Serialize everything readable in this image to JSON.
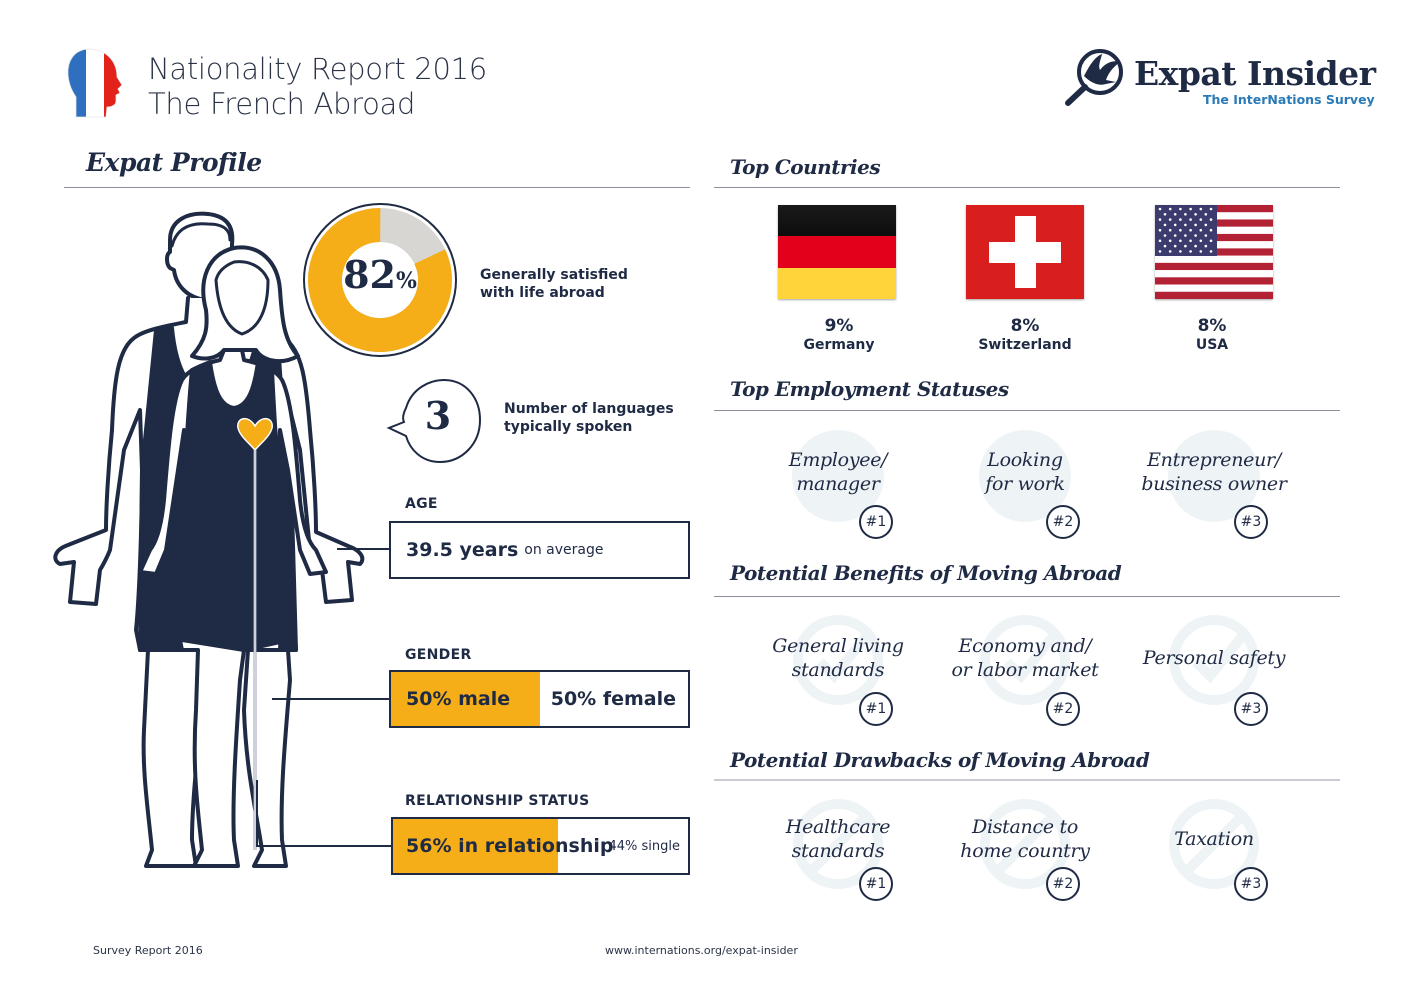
{
  "header": {
    "title_line1": "Nationality Report 2016",
    "title_line2": "The French Abroad",
    "logo_name": "Expat Insider",
    "logo_tagline": "The InterNations Survey",
    "flag_colors": [
      "#2f6fbf",
      "#ffffff",
      "#e2231a"
    ]
  },
  "profile": {
    "section_title": "Expat Profile",
    "satisfaction": {
      "value": 82,
      "number": "82",
      "unit": "%",
      "text_line1": "Generally satisfied",
      "text_line2": "with life abroad"
    },
    "languages": {
      "number": "3",
      "text_line1": "Number of languages",
      "text_line2": "typically spoken"
    },
    "age": {
      "label": "AGE",
      "value": "39.5 years",
      "suffix": "on average"
    },
    "gender": {
      "label": "GENDER",
      "male_pct": 50,
      "male_text": "50% male",
      "female_text": "50% female"
    },
    "relationship": {
      "label": "RELATIONSHIP STATUS",
      "relationship_pct": 56,
      "relationship_text": "56% in relationship",
      "single_text": "44% single"
    }
  },
  "top_countries": {
    "section_title": "Top Countries",
    "items": [
      {
        "pct": "9%",
        "name": "Germany",
        "flag": "germany-flag"
      },
      {
        "pct": "8%",
        "name": "Switzerland",
        "flag": "switzerland-flag"
      },
      {
        "pct": "8%",
        "name": "USA",
        "flag": "usa-flag"
      }
    ]
  },
  "employment": {
    "section_title": "Top Employment Statuses",
    "items": [
      {
        "line1": "Employee/",
        "line2": "manager",
        "rank": "#1"
      },
      {
        "line1": "Looking",
        "line2": "for work",
        "rank": "#2"
      },
      {
        "line1": "Entrepreneur/",
        "line2": "business owner",
        "rank": "#3"
      }
    ]
  },
  "benefits": {
    "section_title": "Potential Benefits of Moving Abroad",
    "items": [
      {
        "line1": "General living",
        "line2": "standards",
        "rank": "#1"
      },
      {
        "line1": "Economy and/",
        "line2": "or labor market",
        "rank": "#2"
      },
      {
        "line1": "Personal safety",
        "line2": "",
        "rank": "#3"
      }
    ]
  },
  "drawbacks": {
    "section_title": "Potential Drawbacks of Moving Abroad",
    "items": [
      {
        "line1": "Healthcare",
        "line2": "standards",
        "rank": "#1"
      },
      {
        "line1": "Distance to",
        "line2": "home country",
        "rank": "#2"
      },
      {
        "line1": "Taxation",
        "line2": "",
        "rank": "#3"
      }
    ]
  },
  "colors": {
    "navy": "#1f2a44",
    "accent": "#f5ae18",
    "gray": "#d8d6d2",
    "link_blue": "#2a7ab8",
    "watermark": "#eef3f6"
  },
  "footer": {
    "left": "Survey Report 2016",
    "center": "www.internations.org/expat-insider"
  }
}
